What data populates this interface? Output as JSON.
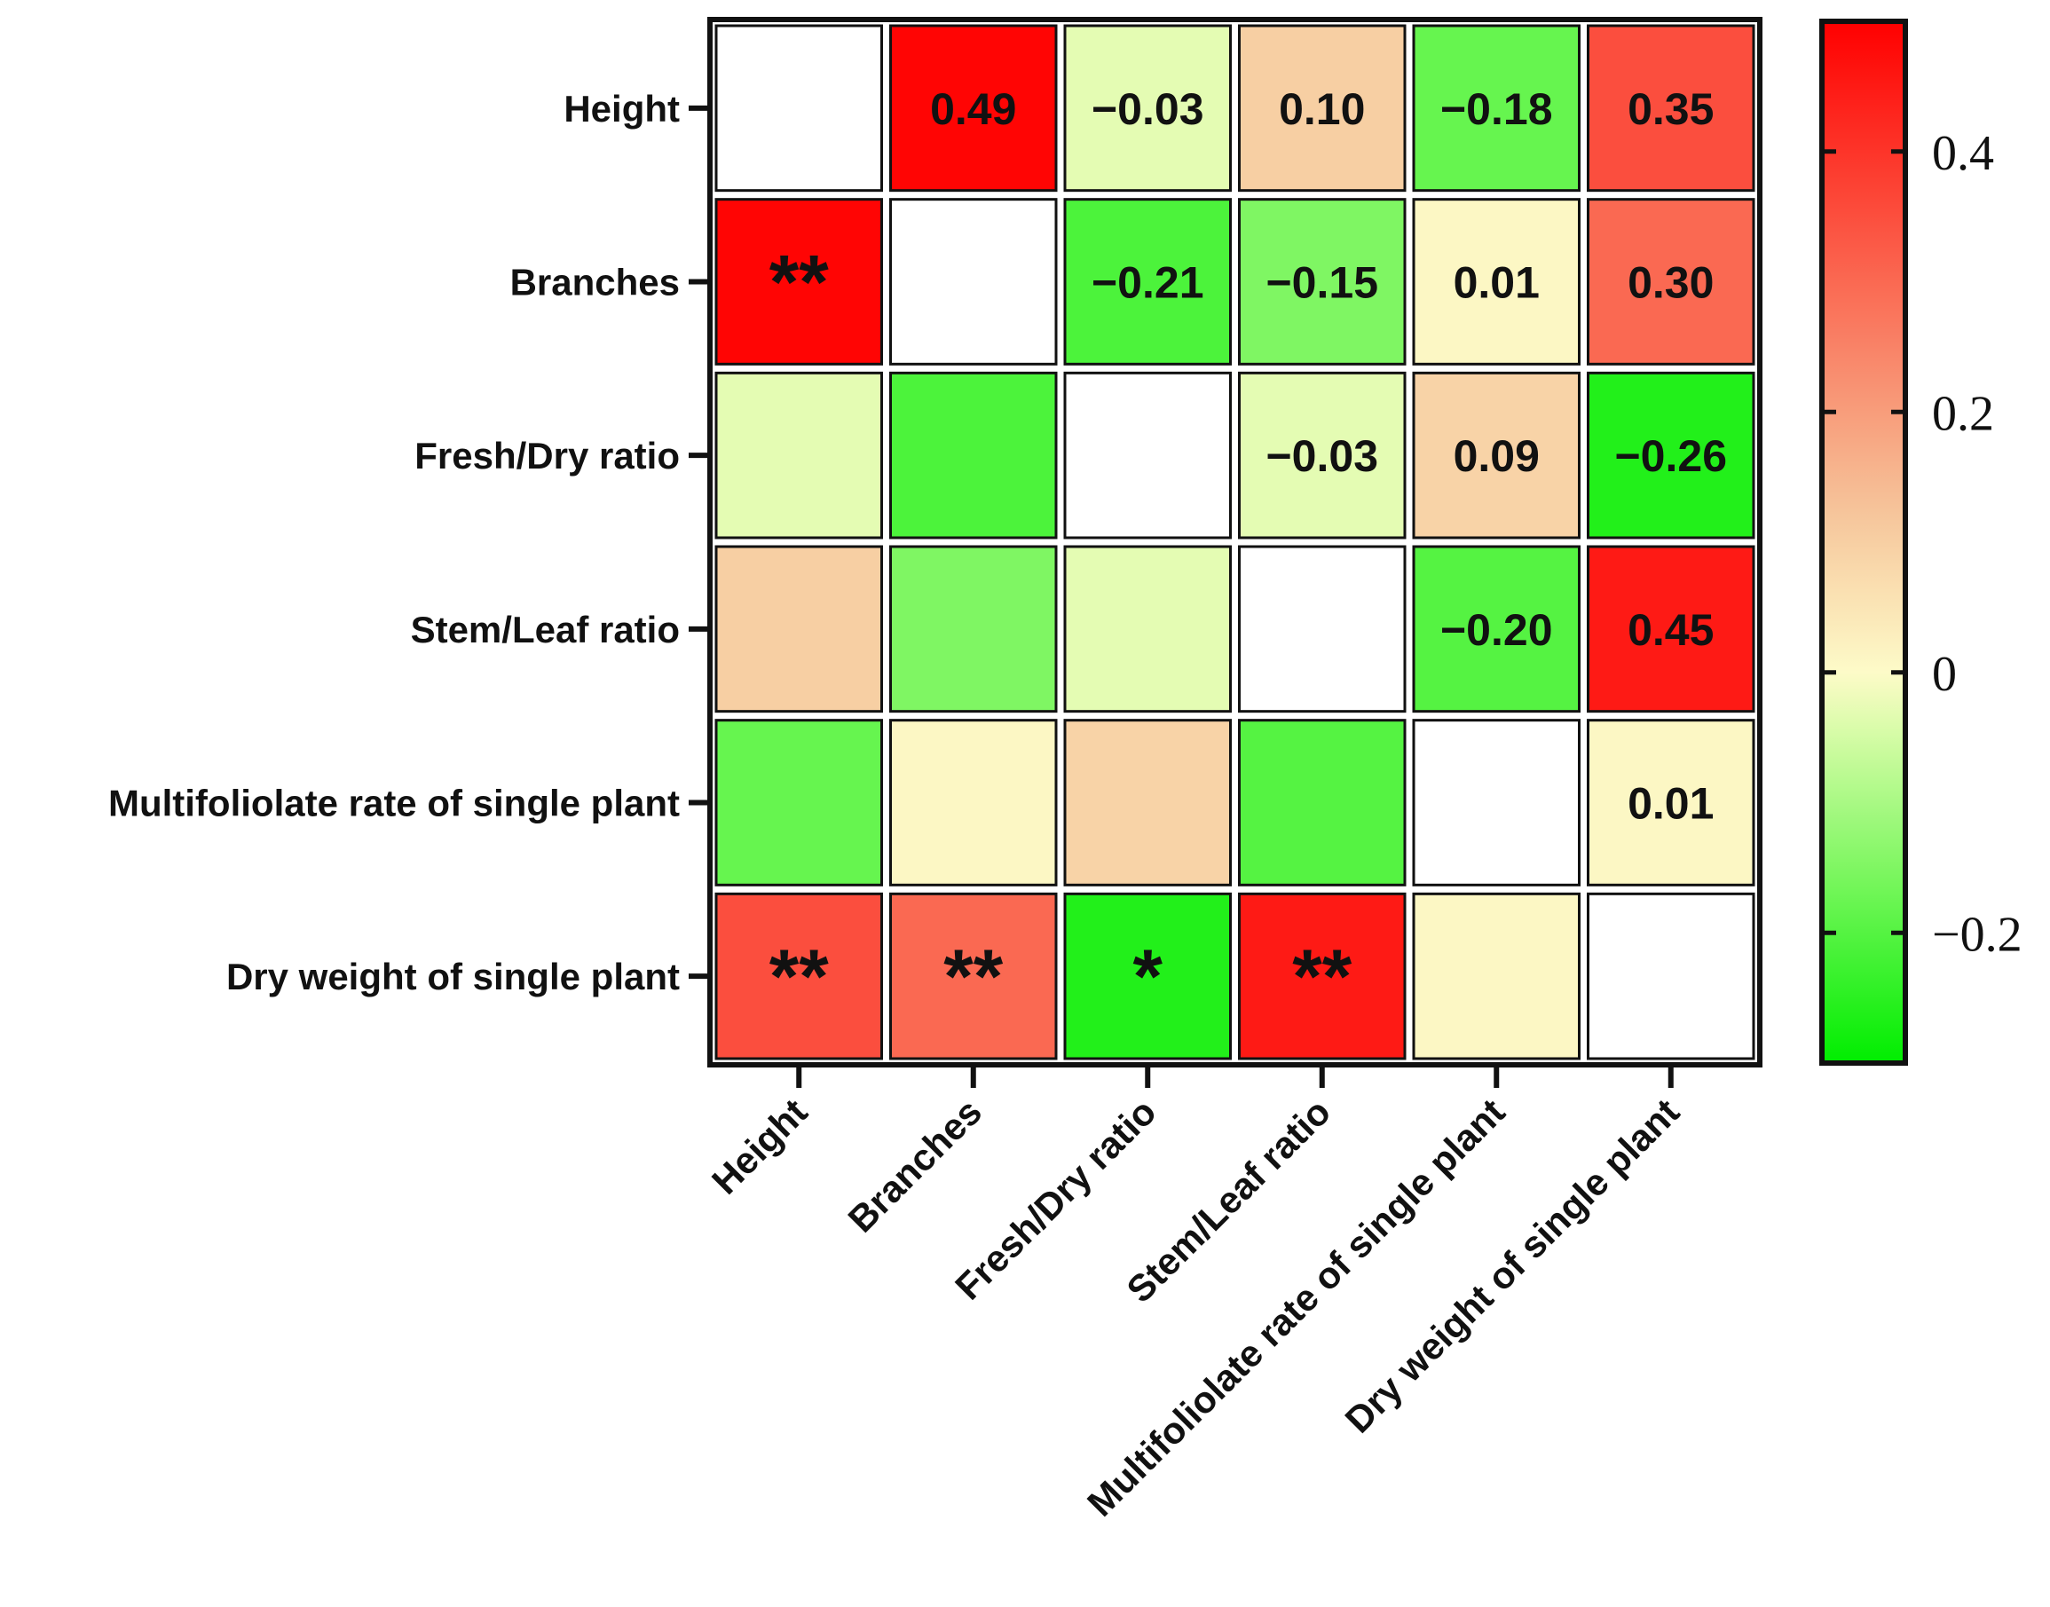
{
  "chart_data": {
    "type": "heatmap",
    "title": "",
    "rows": [
      "Height",
      "Branches",
      "Fresh/Dry ratio",
      "Stem/Leaf ratio",
      "Multifoliolate rate of single plant",
      "Dry weight of single plant"
    ],
    "columns": [
      "Height",
      "Branches",
      "Fresh/Dry ratio",
      "Stem/Leaf ratio",
      "Multifoliolate rate of single plant",
      "Dry weight of single plant"
    ],
    "correlations": [
      {
        "row": 0,
        "col": 1,
        "value": 0.49,
        "label": "0.49"
      },
      {
        "row": 0,
        "col": 2,
        "value": -0.03,
        "label": "−0.03"
      },
      {
        "row": 0,
        "col": 3,
        "value": 0.1,
        "label": "0.10"
      },
      {
        "row": 0,
        "col": 4,
        "value": -0.18,
        "label": "−0.18"
      },
      {
        "row": 0,
        "col": 5,
        "value": 0.35,
        "label": "0.35"
      },
      {
        "row": 1,
        "col": 2,
        "value": -0.21,
        "label": "−0.21"
      },
      {
        "row": 1,
        "col": 3,
        "value": -0.15,
        "label": "−0.15"
      },
      {
        "row": 1,
        "col": 4,
        "value": 0.01,
        "label": "0.01"
      },
      {
        "row": 1,
        "col": 5,
        "value": 0.3,
        "label": "0.30"
      },
      {
        "row": 2,
        "col": 3,
        "value": -0.03,
        "label": "−0.03"
      },
      {
        "row": 2,
        "col": 4,
        "value": 0.09,
        "label": "0.09"
      },
      {
        "row": 2,
        "col": 5,
        "value": -0.26,
        "label": "−0.26"
      },
      {
        "row": 3,
        "col": 4,
        "value": -0.2,
        "label": "−0.20"
      },
      {
        "row": 3,
        "col": 5,
        "value": 0.45,
        "label": "0.45"
      },
      {
        "row": 4,
        "col": 5,
        "value": 0.01,
        "label": "0.01"
      }
    ],
    "significance": [
      {
        "row": 1,
        "col": 0,
        "label": "**"
      },
      {
        "row": 5,
        "col": 0,
        "label": "**"
      },
      {
        "row": 5,
        "col": 1,
        "label": "**"
      },
      {
        "row": 5,
        "col": 2,
        "label": "*"
      },
      {
        "row": 5,
        "col": 3,
        "label": "**"
      }
    ],
    "colorbar": {
      "ticks": [
        0.4,
        0.2,
        0,
        -0.2
      ],
      "tick_labels": [
        "0.4",
        "0.2",
        "0",
        "−0.2"
      ],
      "range": [
        -0.3,
        0.5
      ],
      "colors": {
        "high": "#ff0000",
        "low": "#00ee00",
        "mid": "#fdfbc8"
      }
    },
    "legend": "right"
  }
}
